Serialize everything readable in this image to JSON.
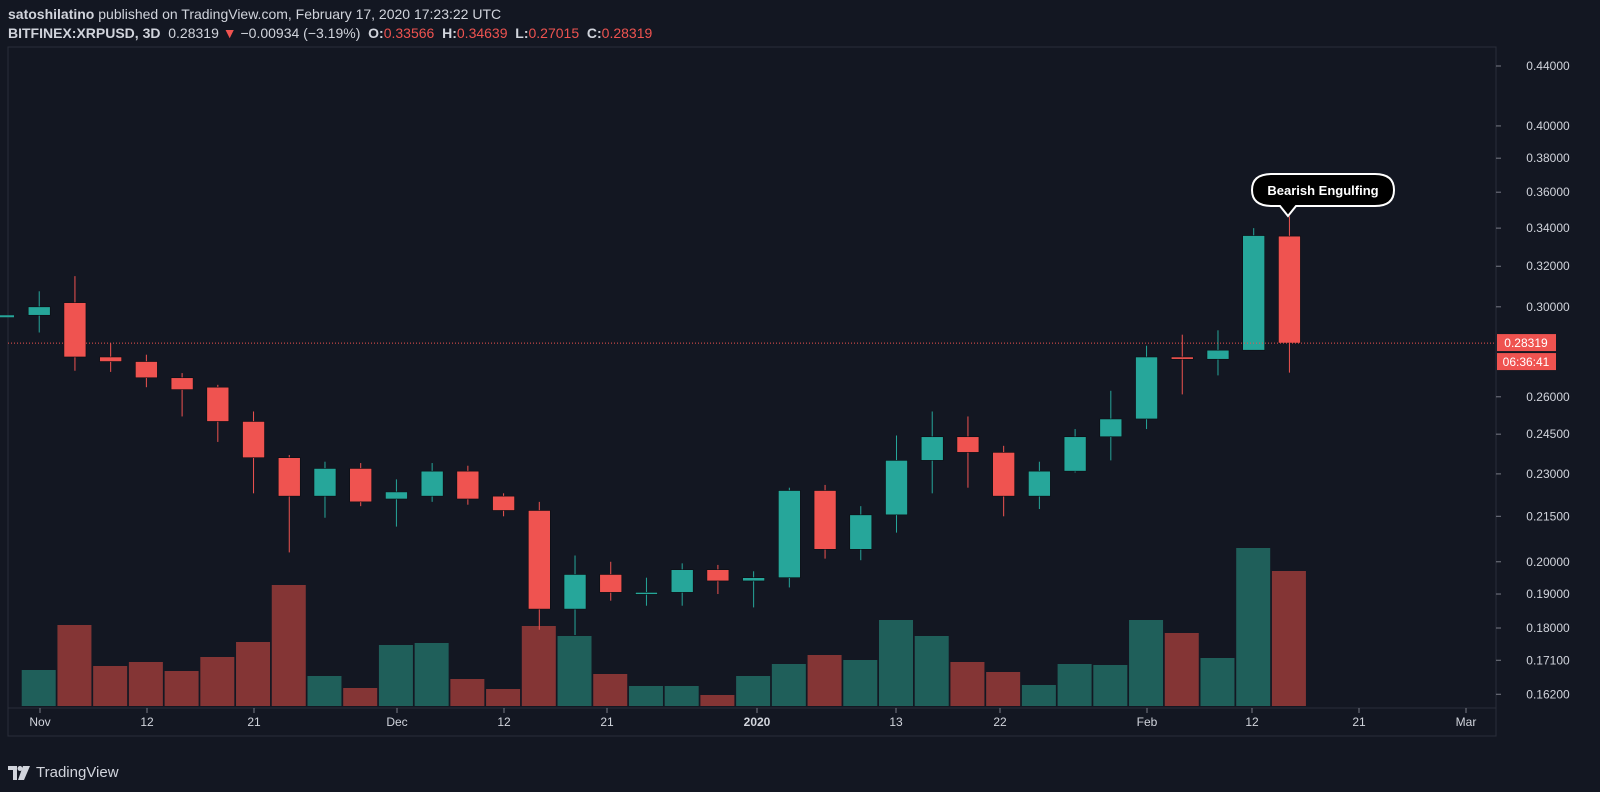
{
  "header": {
    "author": "satoshilatino",
    "published": "published on TradingView.com, February 17, 2020 17:23:22 UTC"
  },
  "symbol": {
    "name": "BITFINEX:XRPUSD, 3D",
    "last": "0.28319",
    "change": "−0.00934 (−3.19%)",
    "o_label": "O:",
    "o": "0.33566",
    "h_label": "H:",
    "h": "0.34639",
    "l_label": "L:",
    "l": "0.27015",
    "c_label": "C:",
    "c": "0.28319"
  },
  "brand": {
    "name": "TradingView"
  },
  "colors": {
    "background": "#131722",
    "up": "#26a69a",
    "down": "#ef5350",
    "vol_up": "#1f5f5a",
    "vol_down": "#843535",
    "text": "#d1d4dc"
  },
  "chart_data": {
    "type": "candlestick",
    "y_scale": "log",
    "ylim": [
      0.1585,
      0.4535
    ],
    "y_ticks": [
      "0.44000",
      "0.40000",
      "0.38000",
      "0.36000",
      "0.34000",
      "0.32000",
      "0.30000",
      "0.26000",
      "0.24500",
      "0.23000",
      "0.21500",
      "0.20000",
      "0.19000",
      "0.18000",
      "0.17100",
      "0.16200"
    ],
    "x_ticks": [
      "Nov",
      "12",
      "21",
      "Dec",
      "12",
      "21",
      "2020",
      "13",
      "22",
      "Feb",
      "12",
      "21",
      "Mar"
    ],
    "last_price_label": "0.28319",
    "countdown_label": "06:36:41",
    "annotation": "Bearish Engulfing",
    "candles": [
      {
        "o": 0.296,
        "h": 0.296,
        "l": 0.296,
        "c": 0.296,
        "v": 0.0
      },
      {
        "o": 0.296,
        "h": 0.3075,
        "l": 0.288,
        "c": 0.3,
        "v": 0.36
      },
      {
        "o": 0.302,
        "h": 0.315,
        "l": 0.271,
        "c": 0.277,
        "v": 0.81
      },
      {
        "o": 0.277,
        "h": 0.283,
        "l": 0.2705,
        "c": 0.275,
        "v": 0.4
      },
      {
        "o": 0.275,
        "h": 0.278,
        "l": 0.264,
        "c": 0.268,
        "v": 0.44
      },
      {
        "o": 0.268,
        "h": 0.27,
        "l": 0.252,
        "c": 0.263,
        "v": 0.35
      },
      {
        "o": 0.264,
        "h": 0.265,
        "l": 0.242,
        "c": 0.25,
        "v": 0.49
      },
      {
        "o": 0.25,
        "h": 0.254,
        "l": 0.223,
        "c": 0.236,
        "v": 0.64
      },
      {
        "o": 0.236,
        "h": 0.237,
        "l": 0.203,
        "c": 0.222,
        "v": 1.21
      },
      {
        "o": 0.222,
        "h": 0.2345,
        "l": 0.2145,
        "c": 0.232,
        "v": 0.3
      },
      {
        "o": 0.232,
        "h": 0.234,
        "l": 0.2185,
        "c": 0.22,
        "v": 0.18
      },
      {
        "o": 0.221,
        "h": 0.228,
        "l": 0.2115,
        "c": 0.2235,
        "v": 0.61
      },
      {
        "o": 0.222,
        "h": 0.234,
        "l": 0.22,
        "c": 0.231,
        "v": 0.63
      },
      {
        "o": 0.231,
        "h": 0.233,
        "l": 0.219,
        "c": 0.221,
        "v": 0.27
      },
      {
        "o": 0.222,
        "h": 0.223,
        "l": 0.215,
        "c": 0.217,
        "v": 0.17
      },
      {
        "o": 0.217,
        "h": 0.22,
        "l": 0.1795,
        "c": 0.1855,
        "v": 0.8
      },
      {
        "o": 0.1855,
        "h": 0.202,
        "l": 0.178,
        "c": 0.196,
        "v": 0.7
      },
      {
        "o": 0.196,
        "h": 0.2,
        "l": 0.188,
        "c": 0.1905,
        "v": 0.32
      },
      {
        "o": 0.1905,
        "h": 0.195,
        "l": 0.1865,
        "c": 0.1905,
        "v": 0.2
      },
      {
        "o": 0.1905,
        "h": 0.1995,
        "l": 0.1865,
        "c": 0.1975,
        "v": 0.2
      },
      {
        "o": 0.1975,
        "h": 0.199,
        "l": 0.19,
        "c": 0.194,
        "v": 0.11
      },
      {
        "o": 0.194,
        "h": 0.197,
        "l": 0.186,
        "c": 0.195,
        "v": 0.3
      },
      {
        "o": 0.195,
        "h": 0.225,
        "l": 0.192,
        "c": 0.224,
        "v": 0.42
      },
      {
        "o": 0.224,
        "h": 0.226,
        "l": 0.201,
        "c": 0.204,
        "v": 0.51
      },
      {
        "o": 0.204,
        "h": 0.2185,
        "l": 0.2005,
        "c": 0.2155,
        "v": 0.46
      },
      {
        "o": 0.2155,
        "h": 0.2445,
        "l": 0.2095,
        "c": 0.235,
        "v": 0.86
      },
      {
        "o": 0.235,
        "h": 0.254,
        "l": 0.223,
        "c": 0.244,
        "v": 0.7
      },
      {
        "o": 0.244,
        "h": 0.252,
        "l": 0.225,
        "c": 0.238,
        "v": 0.44
      },
      {
        "o": 0.238,
        "h": 0.2405,
        "l": 0.215,
        "c": 0.222,
        "v": 0.34
      },
      {
        "o": 0.222,
        "h": 0.2345,
        "l": 0.2175,
        "c": 0.231,
        "v": 0.21
      },
      {
        "o": 0.231,
        "h": 0.247,
        "l": 0.2305,
        "c": 0.244,
        "v": 0.42
      },
      {
        "o": 0.244,
        "h": 0.2625,
        "l": 0.235,
        "c": 0.251,
        "v": 0.41
      },
      {
        "o": 0.251,
        "h": 0.282,
        "l": 0.247,
        "c": 0.277,
        "v": 0.86
      },
      {
        "o": 0.277,
        "h": 0.287,
        "l": 0.261,
        "c": 0.276,
        "v": 0.73
      },
      {
        "o": 0.276,
        "h": 0.289,
        "l": 0.269,
        "c": 0.28,
        "v": 0.48
      },
      {
        "o": 0.28,
        "h": 0.34,
        "l": 0.28,
        "c": 0.336,
        "v": 1.58
      },
      {
        "o": 0.3357,
        "h": 0.3464,
        "l": 0.2702,
        "c": 0.2832,
        "v": 1.35
      }
    ]
  }
}
